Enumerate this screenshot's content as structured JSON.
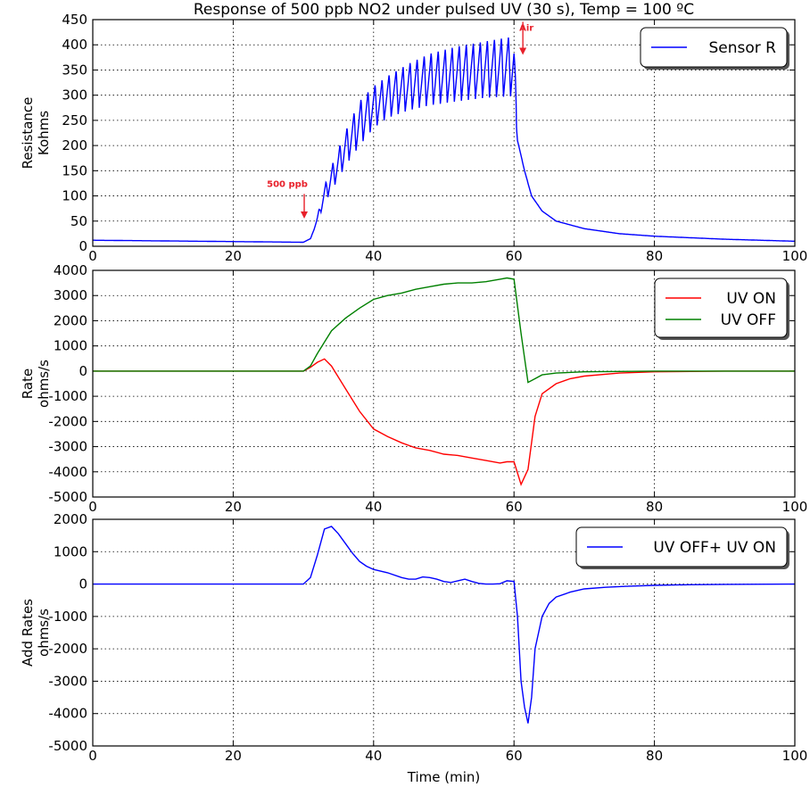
{
  "chart_data": [
    {
      "type": "line",
      "title": "Response of 500 ppb NO2 under pulsed UV (30 s), Temp = 100 ºC",
      "ylabel": [
        "Resistance",
        "Kohms"
      ],
      "xlabel": "",
      "xlim": [
        0,
        100
      ],
      "ylim": [
        0,
        450
      ],
      "xticks": [
        0,
        20,
        40,
        60,
        80,
        100
      ],
      "yticks": [
        0,
        50,
        100,
        150,
        200,
        250,
        300,
        350,
        400,
        450
      ],
      "grid": true,
      "legend_position": "top-right",
      "series": [
        {
          "name": "Sensor R",
          "color": "#0000ff",
          "style": "pulsed_resistance",
          "x": [
            0,
            30,
            31,
            32,
            33,
            34,
            36,
            38,
            40,
            42,
            45,
            48,
            52,
            56,
            60,
            60.5,
            61.5,
            62.5,
            64,
            66,
            70,
            75,
            80,
            90,
            100
          ],
          "y_low": [
            12,
            8,
            15,
            50,
            85,
            110,
            160,
            200,
            235,
            255,
            270,
            280,
            288,
            295,
            298,
            210,
            150,
            100,
            70,
            50,
            35,
            25,
            20,
            14,
            10
          ],
          "y_high": [
            12,
            8,
            15,
            60,
            120,
            160,
            230,
            290,
            320,
            340,
            365,
            385,
            400,
            410,
            420,
            210,
            150,
            100,
            70,
            50,
            35,
            25,
            20,
            14,
            10
          ]
        }
      ],
      "annotations": [
        {
          "text": "500 ppb",
          "x": 30.5,
          "y": 118,
          "arrow_to": 55,
          "color": "#e8202a"
        },
        {
          "text": "Air",
          "x": 60.5,
          "y": 428,
          "arrow_to": 380,
          "color": "#e8202a"
        }
      ]
    },
    {
      "type": "line",
      "title": "",
      "ylabel": [
        "Rate",
        "ohms/s"
      ],
      "xlabel": "",
      "xlim": [
        0,
        100
      ],
      "ylim": [
        -5000,
        4000
      ],
      "xticks": [
        0,
        20,
        40,
        60,
        80,
        100
      ],
      "yticks": [
        -5000,
        -4000,
        -3000,
        -2000,
        -1000,
        0,
        1000,
        2000,
        3000,
        4000
      ],
      "grid": true,
      "legend_position": "top-right",
      "series": [
        {
          "name": "UV ON",
          "color": "#ff0000",
          "x": [
            0,
            30,
            31,
            32,
            33,
            34,
            36,
            38,
            40,
            42,
            44,
            46,
            48,
            50,
            52,
            54,
            56,
            58,
            59,
            60,
            61,
            62,
            63,
            64,
            66,
            68,
            70,
            75,
            80,
            90,
            100
          ],
          "y": [
            0,
            0,
            150,
            350,
            480,
            200,
            -700,
            -1600,
            -2300,
            -2600,
            -2850,
            -3050,
            -3150,
            -3300,
            -3350,
            -3450,
            -3550,
            -3650,
            -3600,
            -3600,
            -4500,
            -3900,
            -1800,
            -900,
            -500,
            -300,
            -200,
            -80,
            -30,
            0,
            0
          ]
        },
        {
          "name": "UV OFF",
          "color": "#008000",
          "x": [
            0,
            30,
            31,
            32,
            34,
            36,
            38,
            40,
            42,
            44,
            46,
            48,
            50,
            52,
            54,
            56,
            58,
            59,
            60,
            61,
            62,
            63,
            64,
            66,
            70,
            80,
            90,
            100
          ],
          "y": [
            0,
            0,
            200,
            700,
            1600,
            2100,
            2500,
            2850,
            3000,
            3100,
            3250,
            3350,
            3450,
            3500,
            3500,
            3550,
            3650,
            3700,
            3650,
            1500,
            -450,
            -300,
            -150,
            -80,
            -30,
            0,
            0,
            0
          ]
        }
      ]
    },
    {
      "type": "line",
      "title": "",
      "ylabel": [
        "Add Rates",
        "ohms/s"
      ],
      "xlabel": "Time (min)",
      "xlim": [
        0,
        100
      ],
      "ylim": [
        -5000,
        2000
      ],
      "xticks": [
        0,
        20,
        40,
        60,
        80,
        100
      ],
      "yticks": [
        -5000,
        -4000,
        -3000,
        -2000,
        -1000,
        0,
        1000,
        2000
      ],
      "grid": true,
      "legend_position": "top-right",
      "series": [
        {
          "name": "UV OFF+ UV ON",
          "color": "#0000ff",
          "x": [
            0,
            30,
            31,
            32,
            33,
            34,
            35,
            36,
            37,
            38,
            39,
            40,
            42,
            44,
            45,
            46,
            47,
            48,
            49,
            50,
            51,
            52,
            53,
            54,
            55,
            56,
            57,
            58,
            59,
            60,
            60.5,
            61,
            61.5,
            62,
            62.5,
            63,
            64,
            65,
            66,
            68,
            70,
            73,
            76,
            80,
            85,
            90,
            100
          ],
          "y": [
            0,
            0,
            200,
            900,
            1700,
            1780,
            1550,
            1250,
            950,
            700,
            550,
            450,
            350,
            200,
            150,
            150,
            220,
            200,
            150,
            80,
            50,
            100,
            150,
            80,
            20,
            0,
            0,
            10,
            100,
            80,
            -1000,
            -3000,
            -3800,
            -4300,
            -3500,
            -2000,
            -1000,
            -600,
            -400,
            -250,
            -150,
            -100,
            -70,
            -40,
            -20,
            -10,
            0
          ]
        }
      ]
    }
  ]
}
